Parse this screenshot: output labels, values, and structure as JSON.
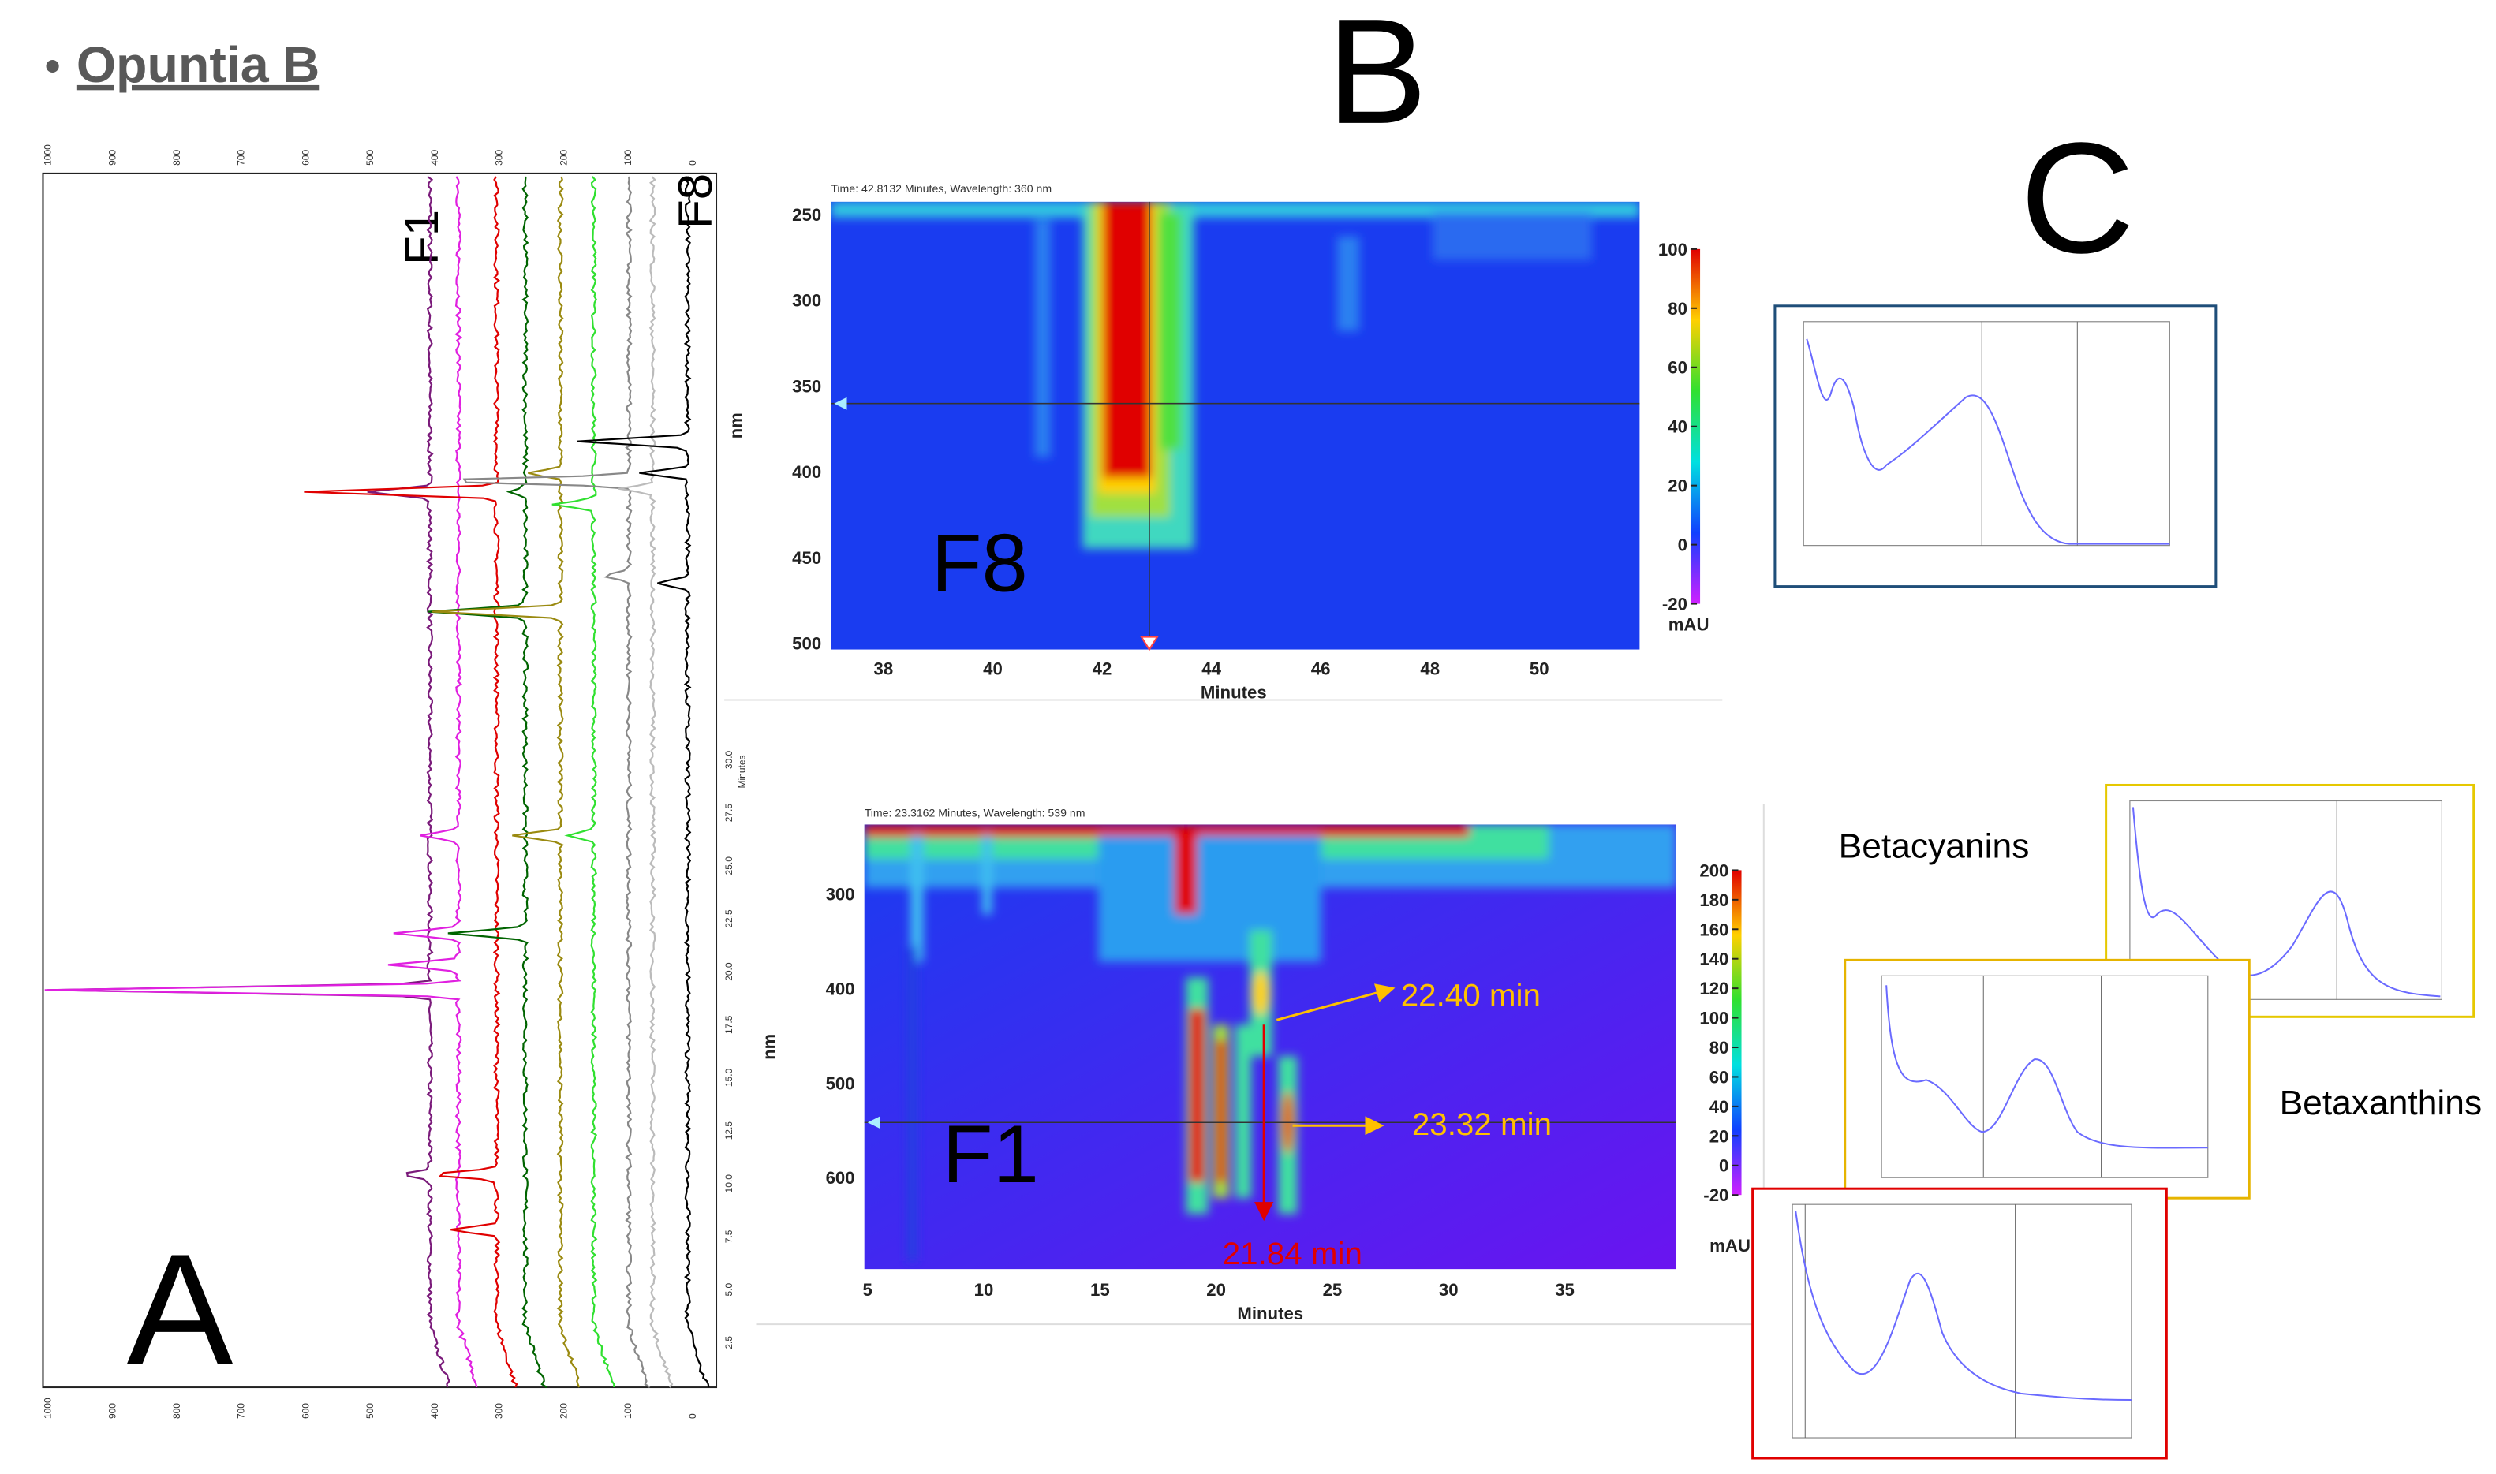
{
  "header": {
    "title": "Opuntia B"
  },
  "panels": {
    "A": {
      "label": "A",
      "trace_labels": [
        "F1",
        "F8"
      ],
      "wavenumber_ticks": [
        "1000",
        "900",
        "800",
        "700",
        "600",
        "500",
        "400",
        "300",
        "200",
        "100",
        "0"
      ],
      "time_ticks": [
        "30.0",
        "27.5",
        "25.0",
        "22.5",
        "20.0",
        "17.5",
        "15.0",
        "12.5",
        "10.0",
        "7.5",
        "5.0",
        "2.5"
      ],
      "time_label": "Minutes"
    },
    "B": {
      "label": "B",
      "top": {
        "info": "Time: 42.8132 Minutes, Wavelength: 360 nm",
        "annotation": "F8",
        "y_label": "nm",
        "y_ticks": [
          "250",
          "300",
          "350",
          "400",
          "450",
          "500"
        ],
        "x_label": "Minutes",
        "x_ticks": [
          "38",
          "40",
          "42",
          "44",
          "46",
          "48",
          "50"
        ],
        "colorbar_ticks": [
          "100",
          "80",
          "60",
          "40",
          "20",
          "0",
          "-20"
        ],
        "colorbar_unit": "mAU"
      },
      "bottom": {
        "info": "Time: 23.3162 Minutes, Wavelength: 539 nm",
        "annotation": "F1",
        "y_label": "nm",
        "y_ticks": [
          "300",
          "400",
          "500",
          "600"
        ],
        "x_label": "Minutes",
        "x_ticks": [
          "5",
          "10",
          "15",
          "20",
          "25",
          "30",
          "35"
        ],
        "colorbar_ticks": [
          "200",
          "180",
          "160",
          "140",
          "120",
          "100",
          "80",
          "60",
          "40",
          "20",
          "0",
          "-20"
        ],
        "colorbar_unit": "mAU",
        "peak_labels": [
          "22.40 min",
          "23.32 min",
          "21.84 min"
        ]
      }
    },
    "C": {
      "label": "C",
      "betacyanins": "Betacyanins",
      "betaxanthins": "Betaxanthins"
    }
  }
}
